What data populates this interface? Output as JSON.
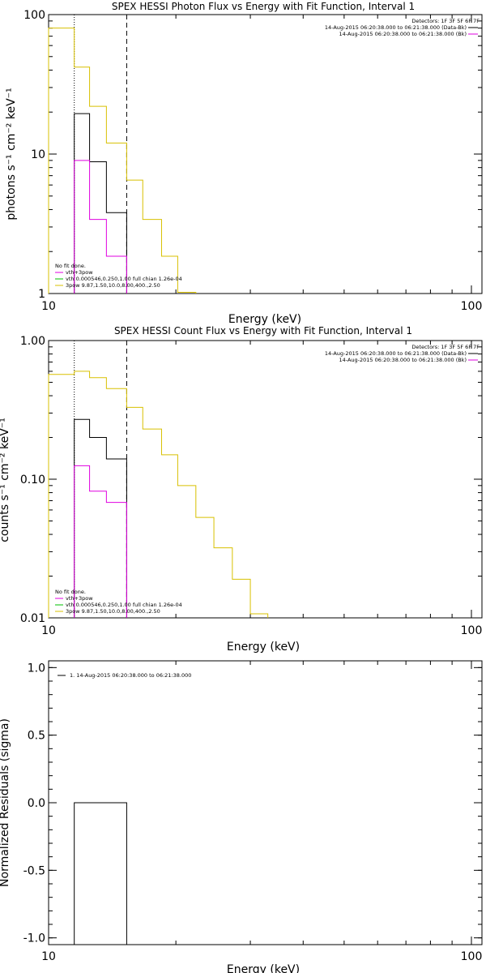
{
  "colors": {
    "black": "#000000",
    "magenta": "#e000e0",
    "green": "#00c000",
    "yellow": "#d8c000",
    "background": "#ffffff"
  },
  "chart_data": [
    {
      "type": "line",
      "title": "SPEX HESSI Photon Flux vs Energy with Fit Function, Interval 1",
      "xlabel": "Energy (keV)",
      "ylabel": "photons s⁻¹ cm⁻² keV⁻¹",
      "xscale": "log",
      "yscale": "log",
      "xlim": [
        10,
        100
      ],
      "ylim": [
        1,
        100
      ],
      "xticks": [
        "10",
        "100"
      ],
      "yticks": [
        {
          "value": 1,
          "label": "1"
        },
        {
          "value": 10,
          "label": "10"
        },
        {
          "value": 100,
          "label": "100"
        }
      ],
      "detectors": "Detectors: 1F 3F 5F 6F 7F",
      "legend_top": [
        {
          "text": "14-Aug-2015 06:20:38.000 to 06:21:38.000 (Data-Bk)",
          "color": "#000000"
        },
        {
          "text": "14-Aug-2015 06:20:38.000 to 06:21:38.000 (Bk)",
          "color": "#e000e0"
        }
      ],
      "fit_legend": [
        {
          "text": "No fit done.",
          "color": ""
        },
        {
          "text": "vth+3pow",
          "color": "#e000e0"
        },
        {
          "text": "vth 0.000546,0.250,1.00  full chian 1.26e-04",
          "color": "#00c000"
        },
        {
          "text": "3pow 9.87,1.50,10.0,8.00,400.,2.50",
          "color": "#d8c000"
        }
      ],
      "vlines": [
        {
          "x": 11.5,
          "style": "dotted"
        },
        {
          "x": 15.3,
          "style": "dashed"
        }
      ],
      "series": [
        {
          "color": "#000000",
          "edges": [
            11.5,
            12.5,
            13.7,
            15.3
          ],
          "values": [
            19.5,
            8.8,
            3.8
          ]
        },
        {
          "color": "#e000e0",
          "edges": [
            11.5,
            12.5,
            13.7,
            15.3
          ],
          "values": [
            9.0,
            3.4,
            1.85
          ]
        },
        {
          "color": "#d8c000",
          "edges": [
            10,
            11.5,
            12.5,
            13.7,
            15.3,
            16.7,
            18.5,
            20.2,
            22.3
          ],
          "values": [
            80,
            42,
            22,
            12,
            6.5,
            3.4,
            1.85,
            1.02
          ]
        }
      ]
    },
    {
      "type": "line",
      "title": "SPEX HESSI Count Flux vs Energy with Fit Function, Interval 1",
      "xlabel": "Energy (keV)",
      "ylabel": "counts s⁻¹ cm⁻² keV⁻¹",
      "xscale": "log",
      "yscale": "log",
      "xlim": [
        10,
        100
      ],
      "ylim": [
        0.01,
        1
      ],
      "xticks": [
        "10",
        "100"
      ],
      "yticks": [
        {
          "value": 0.01,
          "label": "0.01"
        },
        {
          "value": 0.1,
          "label": "0.10"
        },
        {
          "value": 1,
          "label": "1.00"
        }
      ],
      "detectors": "Detectors: 1F 3F 5F 6F 7F",
      "legend_top": [
        {
          "text": "14-Aug-2015 06:20:38.000 to 06:21:38.000 (Data-Bk)",
          "color": "#000000"
        },
        {
          "text": "14-Aug-2015 06:20:38.000 to 06:21:38.000 (Bk)",
          "color": "#e000e0"
        }
      ],
      "fit_legend": [
        {
          "text": "No fit done.",
          "color": ""
        },
        {
          "text": "vth+3pow",
          "color": "#e000e0"
        },
        {
          "text": "vth 0.000546,0.250,1.00  full chian 1.26e-04",
          "color": "#00c000"
        },
        {
          "text": "3pow 9.87,1.50,10.0,8.00,400.,2.50",
          "color": "#d8c000"
        }
      ],
      "vlines": [
        {
          "x": 11.5,
          "style": "dotted"
        },
        {
          "x": 15.3,
          "style": "dashed"
        }
      ],
      "series": [
        {
          "color": "#000000",
          "edges": [
            11.5,
            12.5,
            13.7,
            15.3
          ],
          "values": [
            0.27,
            0.2,
            0.14
          ]
        },
        {
          "color": "#e000e0",
          "edges": [
            11.5,
            12.5,
            13.7,
            15.3
          ],
          "values": [
            0.125,
            0.082,
            0.068
          ]
        },
        {
          "color": "#d8c000",
          "edges": [
            10,
            11.5,
            12.5,
            13.7,
            15.3,
            16.7,
            18.5,
            20.2,
            22.3,
            24.6,
            27.2,
            30.0,
            33.0
          ],
          "values": [
            0.57,
            0.6,
            0.54,
            0.45,
            0.33,
            0.23,
            0.15,
            0.09,
            0.053,
            0.032,
            0.019,
            0.0107
          ]
        }
      ]
    },
    {
      "type": "line",
      "title": "",
      "xlabel": "Energy (keV)",
      "ylabel": "Normalized Residuals (sigma)",
      "xscale": "log",
      "yscale": "linear",
      "xlim": [
        10,
        100
      ],
      "ylim": [
        -1.05,
        1.05
      ],
      "xticks": [
        "10",
        "100"
      ],
      "yticks": [
        {
          "value": -1,
          "label": "-1.0"
        },
        {
          "value": -0.5,
          "label": "-0.5"
        },
        {
          "value": 0,
          "label": "0.0"
        },
        {
          "value": 0.5,
          "label": "0.5"
        },
        {
          "value": 1,
          "label": "1.0"
        }
      ],
      "residual_legend": "1. 14-Aug-2015 06:20:38.000 to 06:21:38.000",
      "series": [
        {
          "color": "#000000",
          "edges": [
            11.5,
            15.3
          ],
          "values": [
            0
          ]
        }
      ]
    }
  ]
}
